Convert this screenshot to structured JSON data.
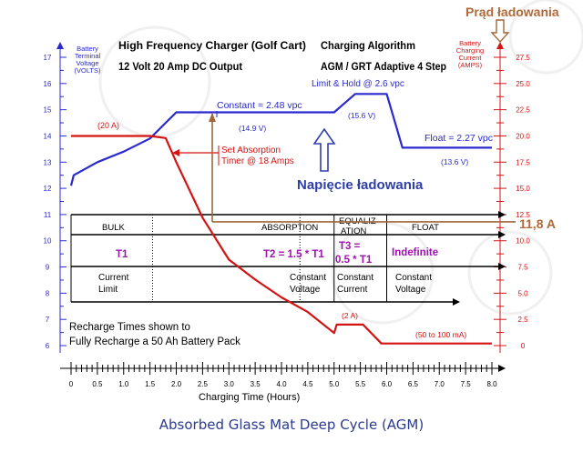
{
  "chart_data": {
    "type": "line",
    "title_left_1": "High Frequency Charger (Golf Cart)",
    "title_left_2": "12 Volt 20 Amp DC Output",
    "title_right_1": "Charging Algorithm",
    "title_right_2": "AGM / GRT Adaptive 4 Step",
    "xlabel": "Charging Time (Hours)",
    "xlim": [
      0,
      8.0
    ],
    "x_ticks": [
      "0",
      "0.5",
      "1.0",
      "1.5",
      "2.0",
      "2.5",
      "3.0",
      "3.5",
      "4.0",
      "4.5",
      "5.0",
      "5.5",
      "6.0",
      "6.5",
      "7.0",
      "7.5",
      "8.0"
    ],
    "y_left_label": [
      "Battery",
      "Terminal",
      "Voltage",
      "(VOLTS)"
    ],
    "y_left_lim": [
      6,
      17
    ],
    "y_left_ticks": [
      "6",
      "7",
      "8",
      "9",
      "10",
      "11",
      "12",
      "13",
      "14",
      "15",
      "16",
      "17"
    ],
    "y_right_label": [
      "Battery",
      "Charging",
      "Current",
      "(AMPS)"
    ],
    "y_right_lim": [
      0,
      27.5
    ],
    "y_right_ticks": [
      "0",
      "2.5",
      "5.0",
      "7.5",
      "10.0",
      "12.5",
      "15.0",
      "17.5",
      "20.0",
      "22.5",
      "25.0",
      "27.5"
    ],
    "series": [
      {
        "axis": "left",
        "color": "#2a2ad0",
        "points": [
          [
            0,
            12.1
          ],
          [
            0.05,
            12.5
          ],
          [
            0.5,
            13.0
          ],
          [
            1.0,
            13.4
          ],
          [
            1.5,
            13.9
          ],
          [
            1.8,
            14.5
          ],
          [
            2.0,
            14.9
          ],
          [
            5.0,
            14.9
          ],
          [
            5.4,
            15.6
          ],
          [
            6.0,
            15.6
          ],
          [
            6.3,
            13.55
          ],
          [
            8.0,
            13.55
          ]
        ]
      },
      {
        "axis": "right",
        "color": "#d51313",
        "points": [
          [
            0,
            20
          ],
          [
            1.5,
            20
          ],
          [
            1.8,
            19.8
          ],
          [
            2.0,
            17.5
          ],
          [
            2.5,
            12.2
          ],
          [
            3.0,
            8.2
          ],
          [
            3.5,
            6.3
          ],
          [
            4.0,
            4.6
          ],
          [
            4.5,
            3.2
          ],
          [
            5.0,
            1.2
          ],
          [
            5.05,
            2
          ],
          [
            5.55,
            2
          ],
          [
            5.9,
            0.2
          ],
          [
            8.0,
            0.2
          ]
        ]
      }
    ],
    "annotations": {
      "constant_label": "Constant = 2.48 vpc",
      "v149": "(14.9 V)",
      "limit_hold": "Limit & Hold @ 2.6 vpc",
      "v156": "(15.6 V)",
      "float_label": "Float = 2.27 vpc",
      "v136": "(13.6 V)",
      "a20": "(20 A)",
      "set_absorption_1": "Set Absorption",
      "set_absorption_2": "Timer @ 18 Amps",
      "a2": "(2 A)",
      "a50_100": "(50 to 100 mA)",
      "recharge_1": "Recharge Times shown to",
      "recharge_2": "Fully Recharge a 50 Ah Battery Pack"
    },
    "stage_table": {
      "names": [
        "BULK",
        "ABSORPTION",
        "EQUALIZ",
        "ATION",
        "FLOAT"
      ],
      "times": [
        "T1",
        "T2 = 1.5 * T1",
        "T3 =",
        "0.5 * T1",
        "Indefinite"
      ],
      "modes": [
        [
          "Current",
          "Limit"
        ],
        [
          "Constant",
          "Voltage"
        ],
        [
          "Constant",
          "Current"
        ],
        [
          "Constant",
          "Voltage"
        ]
      ]
    },
    "overlay": {
      "prad_label": "Prąd ładowania",
      "napiecie_label": "Napięcie ładowania",
      "current_marker": "11,8 A"
    }
  },
  "caption": "Absorbed Glass Mat Deep Cycle (AGM)"
}
